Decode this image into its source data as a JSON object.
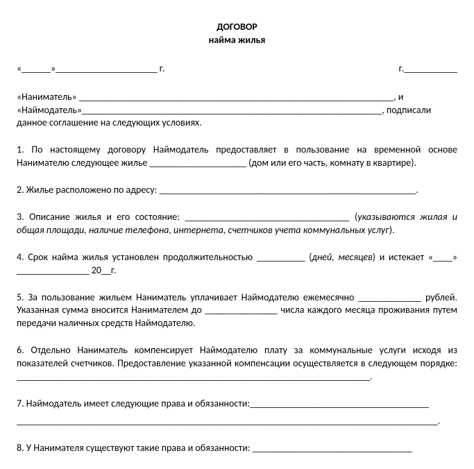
{
  "header": {
    "title": "ДОГОВОР",
    "subtitle": "найма жилья"
  },
  "date_row": {
    "left": "«______»_____________________ г.",
    "right": "г.___________"
  },
  "parties": {
    "line1": "«Наниматель» _________________________________________________________________, и",
    "line2": "«Наймодатель»______________________________________________________________, подписали",
    "line3": "данное соглашение на следующих условиях."
  },
  "p1": "1. По настоящему договору Наймодатель предоставляет в пользование на временной основе Нанимателю следующее жилье ____________________ (дом или его часть, комнату в квартире).",
  "p2": "2. Жилье расположено по адресу: _____________________________________________________.",
  "p3": {
    "text": "3. Описание жилья и его состояние: __________________________________ (",
    "italic": "указываются жилая и общая площади, наличие телефона, интернета, счетчиков учета коммунальных услуг",
    "close": ")."
  },
  "p4": {
    "part1": "4. Срок найма жилья установлен продолжительностью __________ (",
    "italic": "дней, месяцев",
    "part2": ") и истекает «____» _______________ 20__г."
  },
  "p5": "5. За пользование жильем Наниматель уплачивает Наймодателю ежемесячно _____________ рублей. Указанная сумма вносится Нанимателем до _______________ числа каждого месяца проживания путем передачи наличных средств Наймодателю.",
  "p6": "6. Отдельно Наниматель компенсирует Наймодателю плату за коммунальные услуги исходя из показателей счетчиков. Предоставление указанной компенсации осуществляется в следующем порядке: _________________________________________________________________________.",
  "p7": {
    "line1": "7. Наймодатель имеет следующие права и обязанности:_____________________________________",
    "line2": "_______________________________________________________________________________________."
  },
  "p8": "8. У Нанимателя существуют такие права и обязанности: _________________________________"
}
